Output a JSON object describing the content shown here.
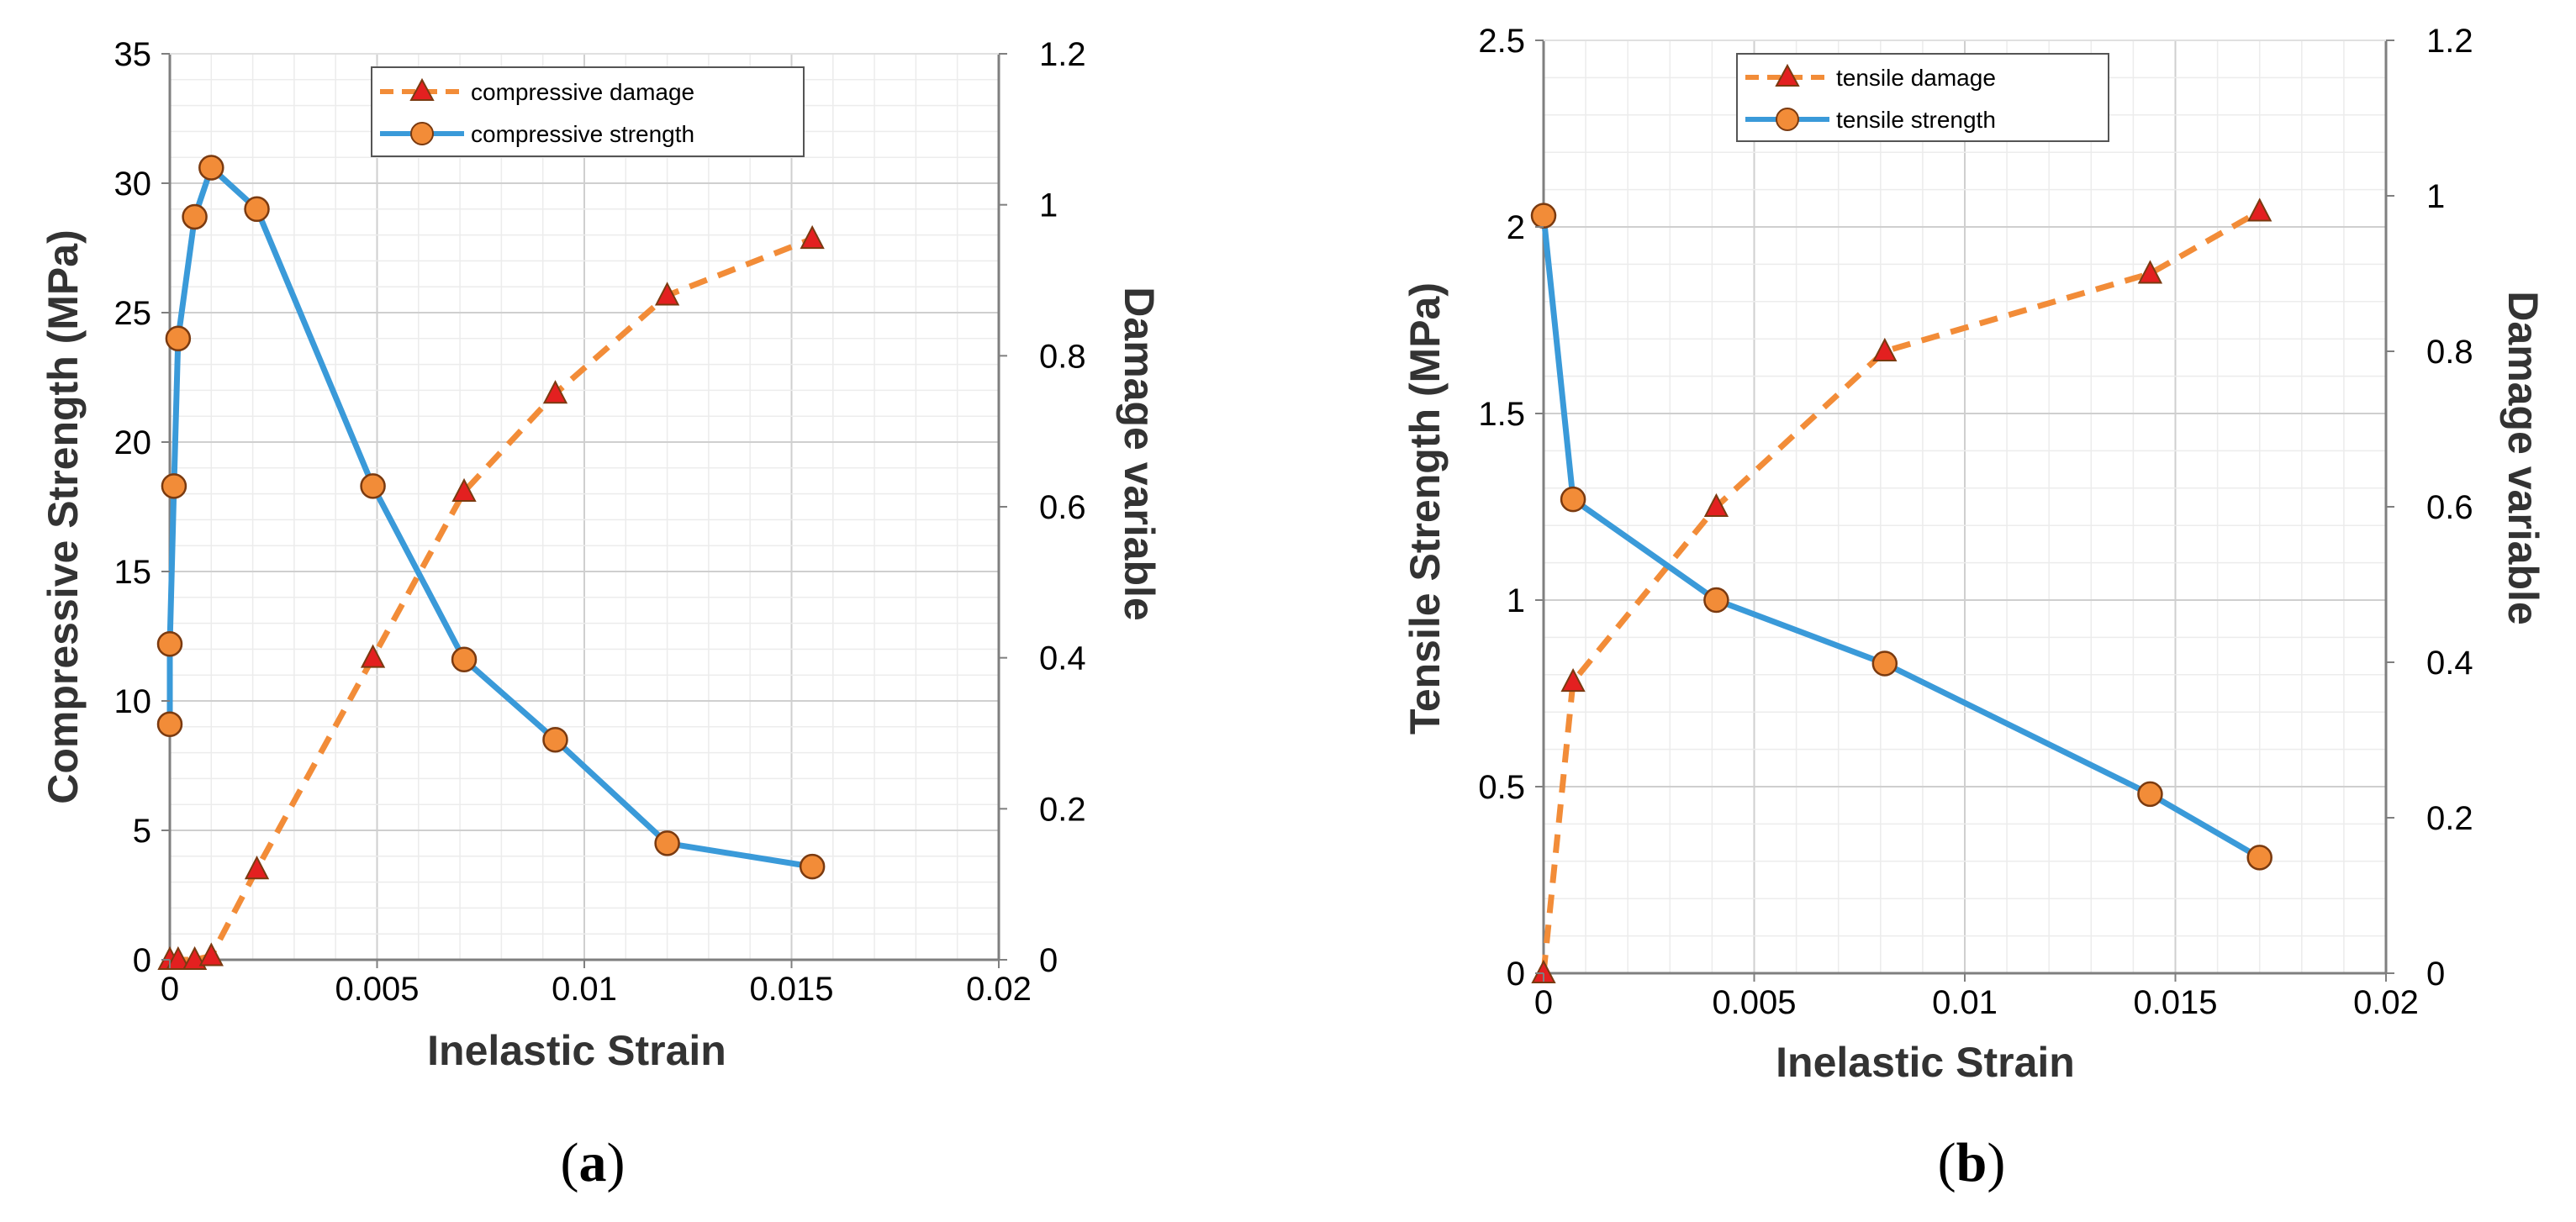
{
  "colors": {
    "damage": "#f28c38",
    "strength": "#3a9ad9",
    "triangle_fill": "#e32020",
    "circle_fill": "#f28c38",
    "marker_stroke": "#7a3a10",
    "grid": "#d9d9d9"
  },
  "chart_data": [
    {
      "type": "line",
      "panel": "(a)",
      "panel_paren_open": "(",
      "panel_letter": "a",
      "panel_paren_close": ")",
      "xlabel": "Inelastic Strain",
      "ylabel": "Compressive Strength (MPa)",
      "y2label": "Damage variable",
      "xlim": [
        0,
        0.02
      ],
      "ylim": [
        0,
        35
      ],
      "y2lim": [
        0,
        1.2
      ],
      "xticks": [
        0,
        0.005,
        0.01,
        0.015,
        0.02
      ],
      "xtick_labels": [
        "0",
        "0.005",
        "0.01",
        "0.015",
        "0.02"
      ],
      "yticks": [
        0,
        5,
        10,
        15,
        20,
        25,
        30,
        35
      ],
      "ytick_labels": [
        "0",
        "5",
        "10",
        "15",
        "20",
        "25",
        "30",
        "35"
      ],
      "y2ticks": [
        0,
        0.2,
        0.4,
        0.6,
        0.8,
        1,
        1.2
      ],
      "y2tick_labels": [
        "0",
        "0.2",
        "0.4",
        "0.6",
        "0.8",
        "1",
        "1.2"
      ],
      "grid": true,
      "legend_position": "top-center",
      "series": [
        {
          "name": "compressive damage",
          "axis": "right",
          "style": "dashed",
          "marker": "triangle",
          "x": [
            0,
            0.0002,
            0.0006,
            0.001,
            0.0021,
            0.0049,
            0.0071,
            0.0093,
            0.012,
            0.0155
          ],
          "y": [
            0,
            0,
            0,
            0.005,
            0.12,
            0.4,
            0.62,
            0.75,
            0.88,
            0.955
          ]
        },
        {
          "name": "compressive strength",
          "axis": "left",
          "style": "solid",
          "marker": "circle",
          "x": [
            0,
            0,
            0.0001,
            0.0002,
            0.0006,
            0.001,
            0.0021,
            0.0049,
            0.0071,
            0.0093,
            0.012,
            0.0155
          ],
          "y": [
            9.1,
            12.2,
            18.3,
            24.0,
            28.7,
            30.6,
            29.0,
            18.3,
            11.6,
            8.5,
            4.5,
            3.6
          ]
        }
      ]
    },
    {
      "type": "line",
      "panel": "(b)",
      "panel_paren_open": "(",
      "panel_letter": "b",
      "panel_paren_close": ")",
      "xlabel": "Inelastic Strain",
      "ylabel": "Tensile Strength (MPa)",
      "y2label": "Damage variable",
      "xlim": [
        0,
        0.02
      ],
      "ylim": [
        0,
        2.5
      ],
      "y2lim": [
        0,
        1.2
      ],
      "xticks": [
        0,
        0.005,
        0.01,
        0.015,
        0.02
      ],
      "xtick_labels": [
        "0",
        "0.005",
        "0.01",
        "0.015",
        "0.02"
      ],
      "yticks": [
        0,
        0.5,
        1,
        1.5,
        2,
        2.5
      ],
      "ytick_labels": [
        "0",
        "0.5",
        "1",
        "1.5",
        "2",
        "2.5"
      ],
      "y2ticks": [
        0,
        0.2,
        0.4,
        0.6,
        0.8,
        1,
        1.2
      ],
      "y2tick_labels": [
        "0",
        "0.2",
        "0.4",
        "0.6",
        "0.8",
        "1",
        "1.2"
      ],
      "grid": true,
      "legend_position": "top-center",
      "series": [
        {
          "name": "tensile damage",
          "axis": "right",
          "style": "dashed",
          "marker": "triangle",
          "x": [
            0,
            0.0007,
            0.0041,
            0.0081,
            0.0144,
            0.017
          ],
          "y": [
            0,
            0.375,
            0.6,
            0.8,
            0.9,
            0.98
          ]
        },
        {
          "name": "tensile strength",
          "axis": "left",
          "style": "solid",
          "marker": "circle",
          "x": [
            0,
            0.0007,
            0.0041,
            0.0081,
            0.0144,
            0.017
          ],
          "y": [
            2.03,
            1.27,
            1.0,
            0.83,
            0.48,
            0.31
          ]
        }
      ]
    }
  ]
}
